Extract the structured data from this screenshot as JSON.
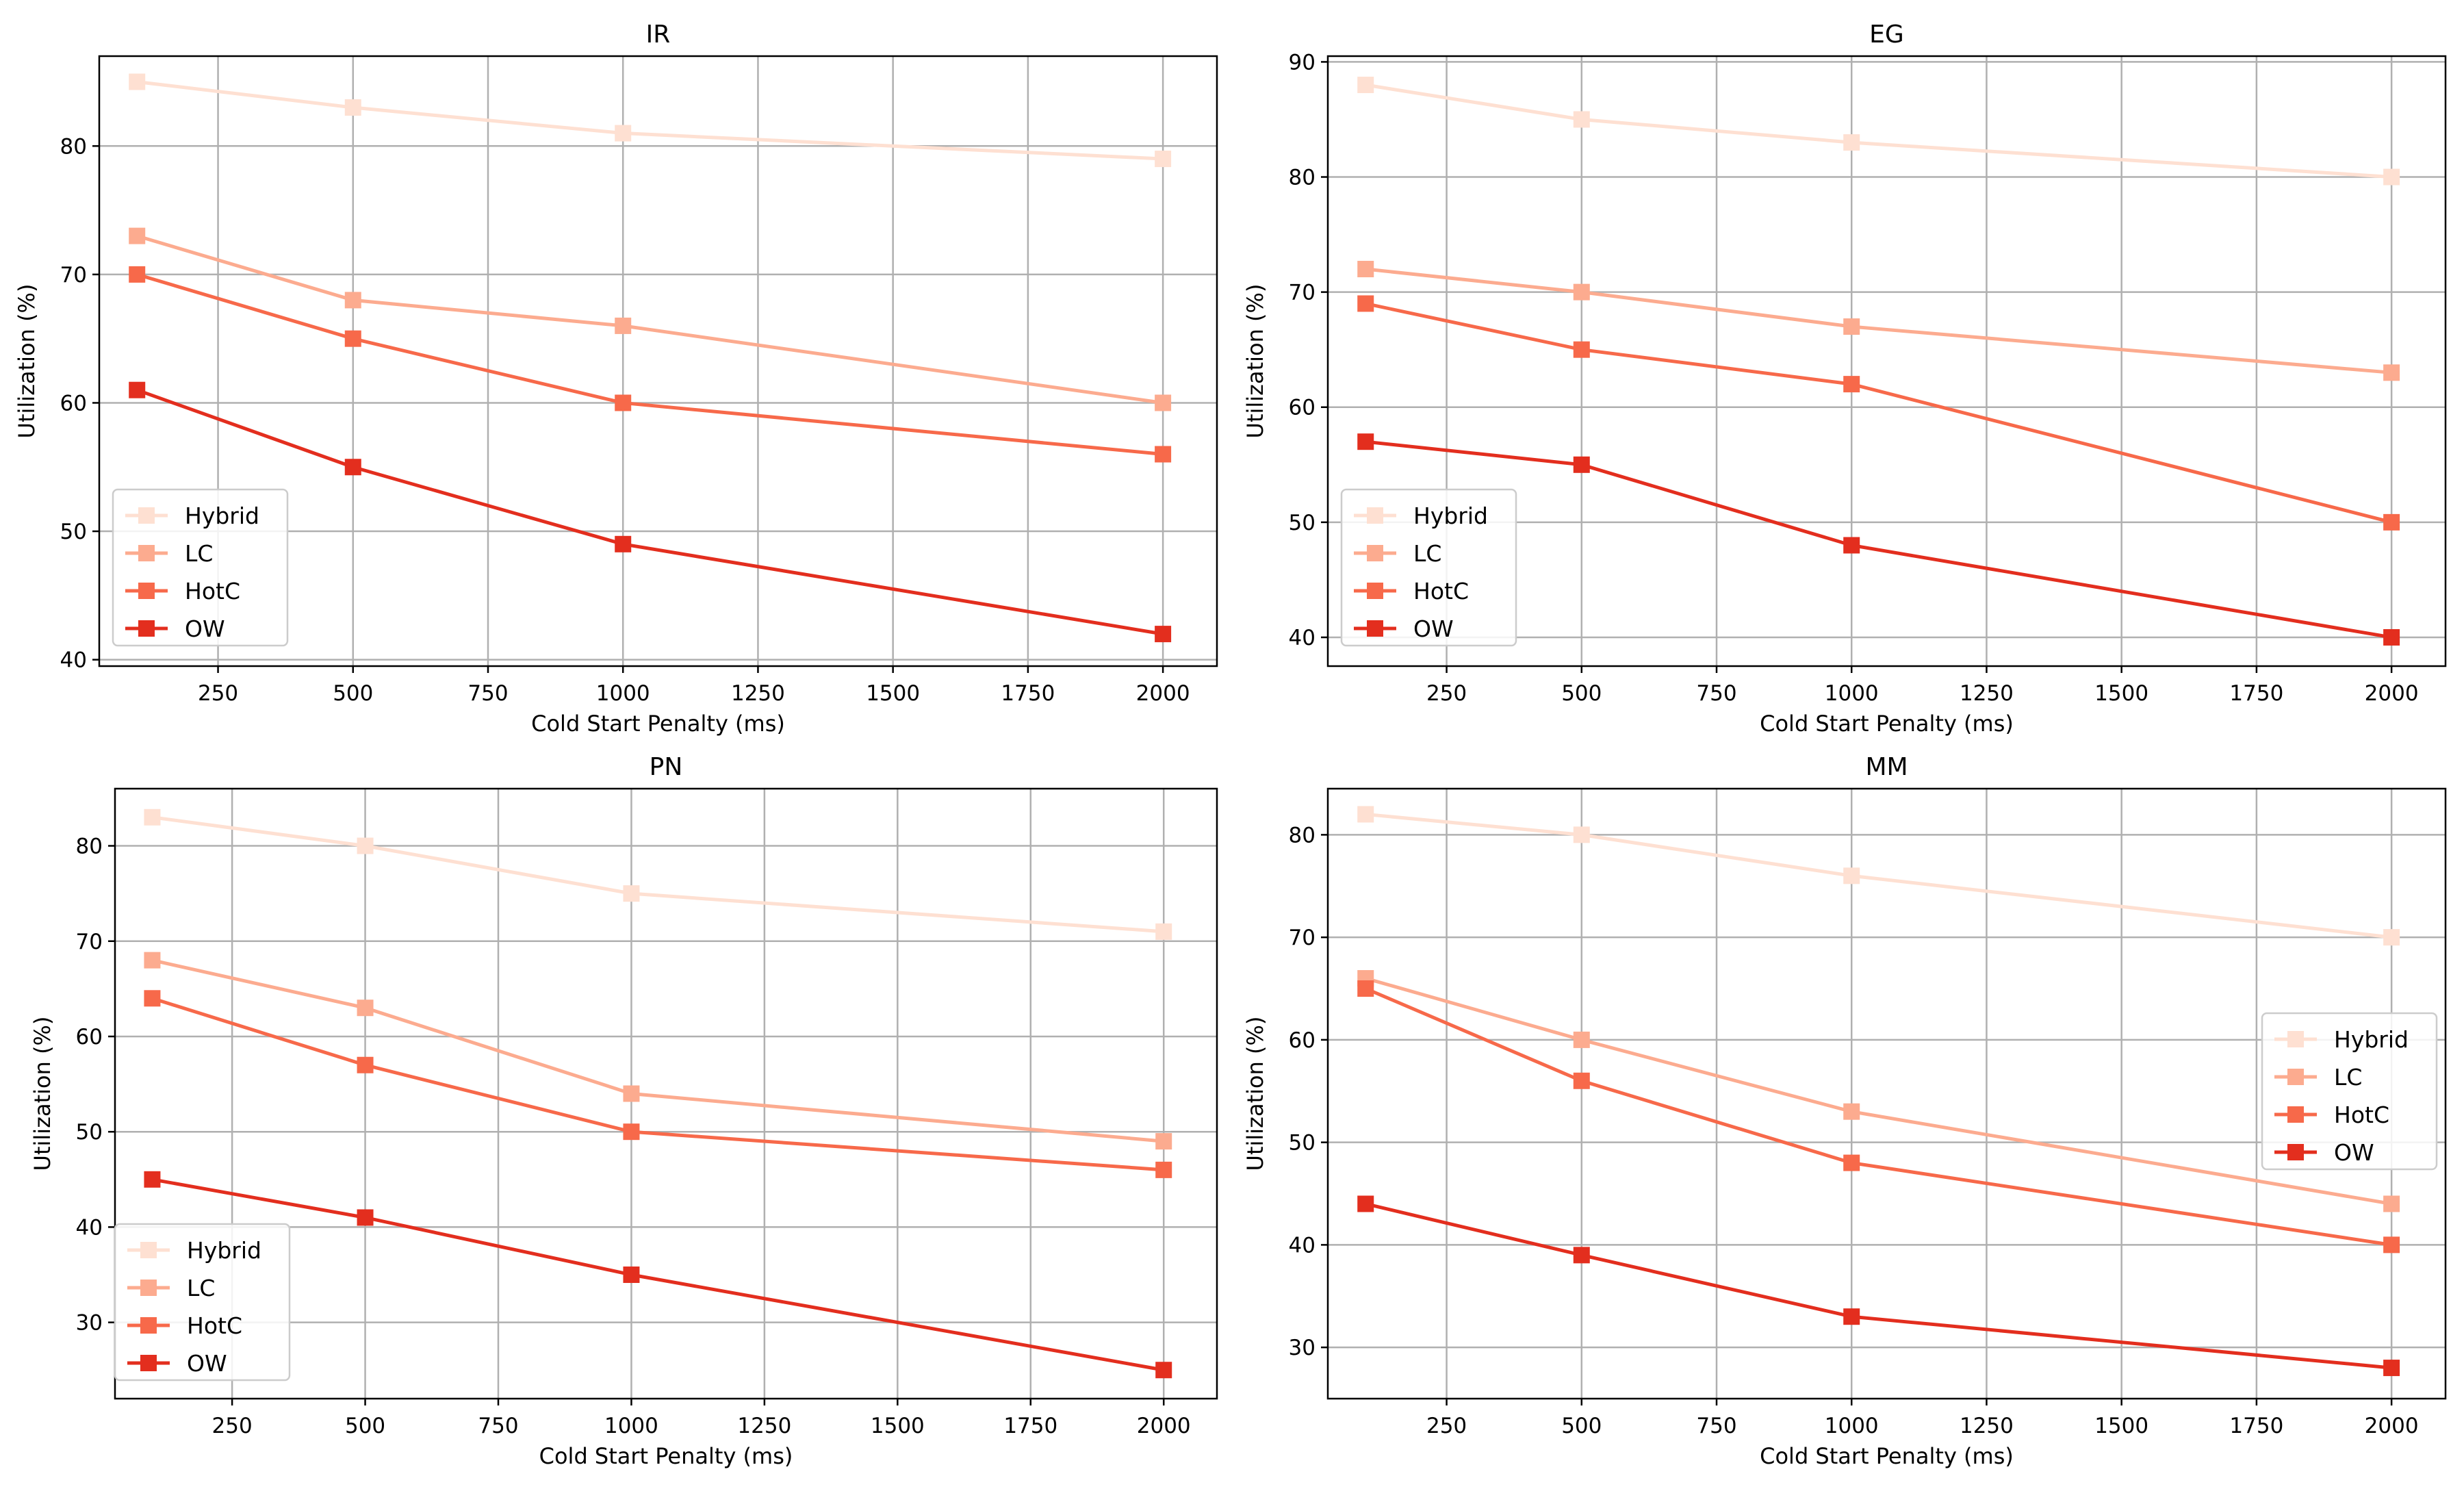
{
  "chart_data": [
    {
      "type": "line",
      "title": "IR",
      "xlabel": "Cold Start Penalty (ms)",
      "ylabel": "Utilization (%)",
      "x": [
        100,
        500,
        1000,
        2000
      ],
      "xlim": [
        30,
        2100
      ],
      "ylim": [
        39.5,
        87
      ],
      "xticks": [
        250,
        500,
        750,
        1000,
        1250,
        1500,
        1750,
        2000
      ],
      "yticks": [
        40,
        50,
        60,
        70,
        80
      ],
      "grid": true,
      "legend_position": "lower-left",
      "series": [
        {
          "name": "Hybrid",
          "values": [
            85,
            83,
            81,
            79
          ],
          "color": "#fee0d2"
        },
        {
          "name": "LC",
          "values": [
            73,
            68,
            66,
            60
          ],
          "color": "#fcab8f"
        },
        {
          "name": "HotC",
          "values": [
            70,
            65,
            60,
            56
          ],
          "color": "#f7694a"
        },
        {
          "name": "OW",
          "values": [
            61,
            55,
            49,
            42
          ],
          "color": "#e32e1e"
        }
      ]
    },
    {
      "type": "line",
      "title": "EG",
      "xlabel": "Cold Start Penalty (ms)",
      "ylabel": "Utilization (%)",
      "x": [
        100,
        500,
        1000,
        2000
      ],
      "xlim": [
        30,
        2100
      ],
      "ylim": [
        37.5,
        90.5
      ],
      "xticks": [
        250,
        500,
        750,
        1000,
        1250,
        1500,
        1750,
        2000
      ],
      "yticks": [
        40,
        50,
        60,
        70,
        80,
        90
      ],
      "grid": true,
      "legend_position": "lower-left",
      "series": [
        {
          "name": "Hybrid",
          "values": [
            88,
            85,
            83,
            80
          ],
          "color": "#fee0d2"
        },
        {
          "name": "LC",
          "values": [
            72,
            70,
            67,
            63
          ],
          "color": "#fcab8f"
        },
        {
          "name": "HotC",
          "values": [
            69,
            65,
            62,
            50
          ],
          "color": "#f7694a"
        },
        {
          "name": "OW",
          "values": [
            57,
            55,
            48,
            40
          ],
          "color": "#e32e1e"
        }
      ]
    },
    {
      "type": "line",
      "title": "PN",
      "xlabel": "Cold Start Penalty (ms)",
      "ylabel": "Utilization (%)",
      "x": [
        100,
        500,
        1000,
        2000
      ],
      "xlim": [
        30,
        2100
      ],
      "ylim": [
        22,
        86
      ],
      "xticks": [
        250,
        500,
        750,
        1000,
        1250,
        1500,
        1750,
        2000
      ],
      "yticks": [
        30,
        40,
        50,
        60,
        70,
        80
      ],
      "grid": true,
      "legend_position": "lower-left",
      "series": [
        {
          "name": "Hybrid",
          "values": [
            83,
            80,
            75,
            71
          ],
          "color": "#fee0d2"
        },
        {
          "name": "LC",
          "values": [
            68,
            63,
            54,
            49
          ],
          "color": "#fcab8f"
        },
        {
          "name": "HotC",
          "values": [
            64,
            57,
            50,
            46
          ],
          "color": "#f7694a"
        },
        {
          "name": "OW",
          "values": [
            45,
            41,
            35,
            25
          ],
          "color": "#e32e1e"
        }
      ]
    },
    {
      "type": "line",
      "title": "MM",
      "xlabel": "Cold Start Penalty (ms)",
      "ylabel": "Utilization (%)",
      "x": [
        100,
        500,
        1000,
        2000
      ],
      "xlim": [
        30,
        2100
      ],
      "ylim": [
        25,
        84.5
      ],
      "xticks": [
        250,
        500,
        750,
        1000,
        1250,
        1500,
        1750,
        2000
      ],
      "yticks": [
        30,
        40,
        50,
        60,
        70,
        80
      ],
      "grid": true,
      "legend_position": "center-right",
      "series": [
        {
          "name": "Hybrid",
          "values": [
            82,
            80,
            76,
            70
          ],
          "color": "#fee0d2"
        },
        {
          "name": "LC",
          "values": [
            66,
            60,
            53,
            44
          ],
          "color": "#fcab8f"
        },
        {
          "name": "HotC",
          "values": [
            65,
            56,
            48,
            40
          ],
          "color": "#f7694a"
        },
        {
          "name": "OW",
          "values": [
            44,
            39,
            33,
            28
          ],
          "color": "#e32e1e"
        }
      ]
    }
  ]
}
